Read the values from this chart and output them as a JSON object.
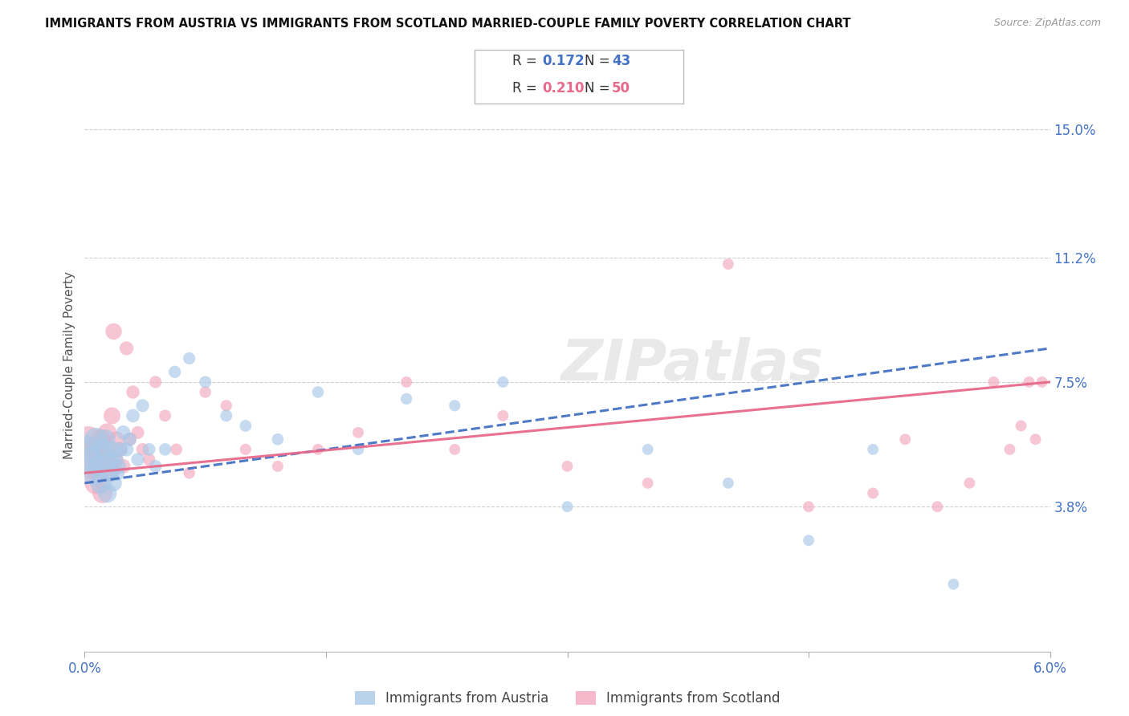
{
  "title": "IMMIGRANTS FROM AUSTRIA VS IMMIGRANTS FROM SCOTLAND MARRIED-COUPLE FAMILY POVERTY CORRELATION CHART",
  "source": "Source: ZipAtlas.com",
  "ylabel": "Married-Couple Family Poverty",
  "xlim": [
    0.0,
    6.0
  ],
  "ylim": [
    -0.5,
    16.5
  ],
  "plot_ylim": [
    -0.5,
    16.5
  ],
  "grid_yticks": [
    3.8,
    7.5,
    11.2,
    15.0
  ],
  "grid_ytick_labels": [
    "3.8%",
    "7.5%",
    "11.2%",
    "15.0%"
  ],
  "xtick_positions": [
    0.0,
    1.5,
    3.0,
    4.5,
    6.0
  ],
  "xtick_labels": [
    "0.0%",
    "",
    "",
    "",
    "6.0%"
  ],
  "austria_color": "#a8c8e8",
  "scotland_color": "#f4a8be",
  "austria_line_color": "#4472c4",
  "scotland_line_color": "#e8698a",
  "austria_R": 0.172,
  "austria_N": 43,
  "scotland_R": 0.21,
  "scotland_N": 50,
  "austria_label": "Immigrants from Austria",
  "scotland_label": "Immigrants from Scotland",
  "title_color": "#111111",
  "axis_label_color": "#4472c4",
  "source_color": "#999999",
  "grid_color": "#d0d0d0",
  "background_color": "#ffffff",
  "watermark": "ZIPatlas",
  "austria_x": [
    0.02,
    0.04,
    0.06,
    0.07,
    0.09,
    0.1,
    0.11,
    0.13,
    0.14,
    0.15,
    0.16,
    0.17,
    0.18,
    0.19,
    0.2,
    0.21,
    0.22,
    0.24,
    0.26,
    0.28,
    0.3,
    0.33,
    0.36,
    0.4,
    0.44,
    0.5,
    0.56,
    0.65,
    0.75,
    0.88,
    1.0,
    1.2,
    1.45,
    1.7,
    2.0,
    2.3,
    2.6,
    3.0,
    3.5,
    4.0,
    4.5,
    4.9,
    5.4
  ],
  "austria_y": [
    5.5,
    5.2,
    4.8,
    5.8,
    5.0,
    4.5,
    5.5,
    5.8,
    4.2,
    5.2,
    4.8,
    5.5,
    4.5,
    5.2,
    4.8,
    5.0,
    5.5,
    6.0,
    5.5,
    5.8,
    6.5,
    5.2,
    6.8,
    5.5,
    5.0,
    5.5,
    7.8,
    8.2,
    7.5,
    6.5,
    6.2,
    5.8,
    7.2,
    5.5,
    7.0,
    6.8,
    7.5,
    3.8,
    5.5,
    4.5,
    2.8,
    5.5,
    1.5
  ],
  "austria_sizes": [
    600,
    550,
    480,
    430,
    390,
    360,
    340,
    310,
    290,
    270,
    250,
    235,
    220,
    205,
    195,
    185,
    175,
    165,
    158,
    150,
    145,
    140,
    135,
    130,
    128,
    125,
    122,
    120,
    118,
    116,
    114,
    112,
    110,
    108,
    106,
    104,
    102,
    100,
    100,
    100,
    100,
    100,
    100
  ],
  "scotland_x": [
    0.02,
    0.04,
    0.06,
    0.07,
    0.09,
    0.1,
    0.11,
    0.13,
    0.14,
    0.15,
    0.16,
    0.17,
    0.18,
    0.19,
    0.2,
    0.22,
    0.24,
    0.26,
    0.28,
    0.3,
    0.33,
    0.36,
    0.4,
    0.44,
    0.5,
    0.57,
    0.65,
    0.75,
    0.88,
    1.0,
    1.2,
    1.45,
    1.7,
    2.0,
    2.3,
    2.6,
    3.0,
    3.5,
    4.0,
    4.5,
    4.9,
    5.1,
    5.3,
    5.5,
    5.65,
    5.75,
    5.82,
    5.87,
    5.91,
    5.95
  ],
  "scotland_y": [
    5.8,
    5.0,
    5.5,
    4.5,
    5.2,
    5.8,
    4.2,
    5.5,
    6.0,
    5.0,
    4.8,
    6.5,
    9.0,
    5.2,
    5.8,
    5.5,
    5.0,
    8.5,
    5.8,
    7.2,
    6.0,
    5.5,
    5.2,
    7.5,
    6.5,
    5.5,
    4.8,
    7.2,
    6.8,
    5.5,
    5.0,
    5.5,
    6.0,
    7.5,
    5.5,
    6.5,
    5.0,
    4.5,
    11.0,
    3.8,
    4.2,
    5.8,
    3.8,
    4.5,
    7.5,
    5.5,
    6.2,
    7.5,
    5.8,
    7.5
  ],
  "scotland_sizes": [
    550,
    500,
    450,
    410,
    375,
    345,
    320,
    295,
    278,
    260,
    244,
    230,
    218,
    206,
    195,
    178,
    165,
    155,
    147,
    140,
    134,
    129,
    124,
    120,
    116,
    113,
    110,
    108,
    106,
    104,
    102,
    100,
    100,
    100,
    100,
    100,
    100,
    100,
    100,
    100,
    100,
    100,
    100,
    100,
    100,
    100,
    100,
    100,
    100,
    100
  ],
  "austria_trendline": [
    4.5,
    8.5
  ],
  "scotland_trendline": [
    4.8,
    7.5
  ],
  "trendline_x": [
    0.0,
    6.0
  ]
}
